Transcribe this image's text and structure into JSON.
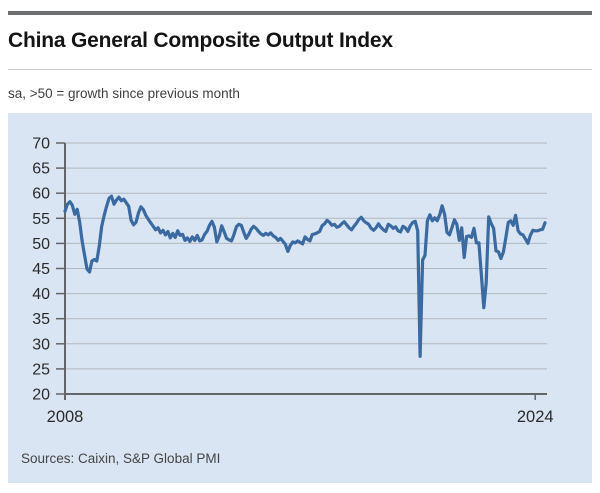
{
  "header": {
    "title": "China General Composite Output Index",
    "subtitle": "sa, >50 = growth since previous month"
  },
  "chart": {
    "source": "Sources: Caixin, S&P Global PMI"
  },
  "colors": {
    "line": "#3a6aa0",
    "plot_background": "#d9e5f3",
    "gridline": "#b2b8bf",
    "axis": "#636569",
    "top_rule": "#6e6f72"
  },
  "chart_data": {
    "type": "line",
    "title": "China General Composite Output Index",
    "subtitle": "sa, >50 = growth since previous month",
    "source": "Sources: Caixin, S&P Global PMI",
    "frequency": "monthly",
    "x_start": "2008-01",
    "x_end": "2024-05",
    "xlabel": "",
    "ylabel": "",
    "ylim": [
      20,
      70
    ],
    "yticks": [
      20,
      25,
      30,
      35,
      40,
      45,
      50,
      55,
      60,
      65,
      70
    ],
    "xticks": [
      {
        "label": "2008",
        "month_index": 0
      },
      {
        "label": "2024",
        "month_index": 192
      }
    ],
    "grid": true,
    "legend": "none",
    "series": [
      {
        "name": "Composite Output Index",
        "values": [
          56.4,
          57.8,
          58.3,
          57.6,
          55.8,
          56.8,
          54.2,
          50.5,
          47.6,
          44.9,
          44.3,
          46.5,
          46.8,
          46.5,
          49.5,
          53.4,
          55.6,
          57.4,
          59.0,
          59.4,
          57.8,
          58.6,
          59.2,
          58.5,
          58.8,
          58.1,
          57.4,
          54.6,
          53.7,
          54.2,
          56.1,
          57.3,
          56.7,
          55.6,
          54.8,
          54.1,
          53.4,
          52.7,
          53.1,
          52.1,
          52.6,
          51.7,
          52.4,
          51.1,
          52.0,
          51.2,
          52.5,
          51.6,
          51.8,
          50.6,
          51.1,
          50.4,
          51.3,
          50.6,
          51.6,
          50.5,
          50.7,
          51.8,
          52.4,
          53.6,
          54.4,
          53.2,
          50.3,
          51.5,
          53.5,
          52.3,
          51.0,
          50.7,
          50.5,
          51.8,
          53.3,
          53.8,
          53.6,
          52.2,
          51.0,
          51.8,
          52.8,
          53.4,
          53.0,
          52.4,
          51.9,
          51.6,
          52.0,
          51.7,
          52.1,
          51.5,
          51.2,
          50.6,
          51.0,
          50.4,
          49.8,
          48.4,
          49.6,
          50.3,
          50.1,
          50.5,
          50.2,
          49.9,
          51.3,
          50.8,
          50.5,
          51.8,
          51.9,
          52.1,
          52.4,
          53.5,
          53.9,
          54.6,
          54.2,
          53.6,
          53.8,
          53.2,
          53.4,
          53.9,
          54.3,
          53.7,
          53.1,
          52.7,
          53.4,
          54.0,
          54.8,
          55.2,
          54.5,
          54.1,
          53.8,
          53.0,
          52.6,
          53.1,
          53.9,
          53.2,
          52.7,
          52.4,
          53.8,
          53.5,
          53.0,
          53.3,
          52.5,
          52.3,
          53.4,
          53.1,
          52.4,
          53.5,
          54.2,
          54.4,
          52.5,
          27.5,
          46.7,
          47.6,
          54.5,
          55.7,
          54.5,
          55.1,
          54.5,
          55.7,
          57.5,
          55.8,
          52.2,
          51.7,
          53.1,
          54.7,
          53.8,
          50.6,
          53.1,
          47.2,
          51.4,
          51.5,
          51.2,
          53.0,
          50.1,
          50.1,
          43.9,
          37.2,
          42.2,
          55.3,
          54.0,
          53.0,
          48.5,
          48.3,
          47.0,
          48.3,
          51.1,
          54.2,
          54.5,
          53.6,
          55.6,
          52.5,
          51.9,
          51.7,
          50.9,
          50.0,
          51.6,
          52.6,
          52.5,
          52.5,
          52.7,
          52.8,
          54.1
        ]
      }
    ]
  }
}
